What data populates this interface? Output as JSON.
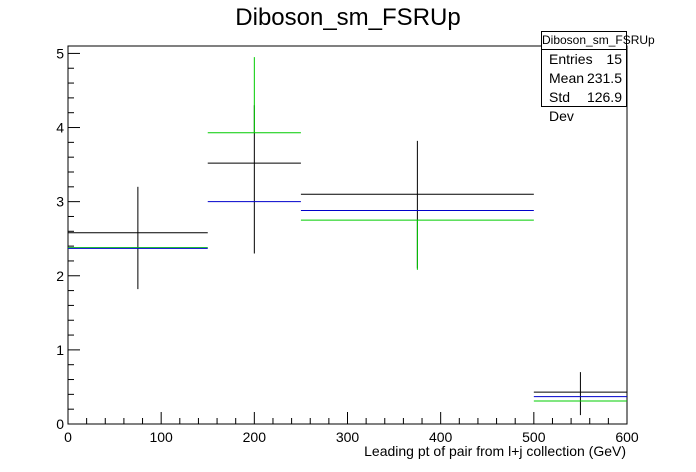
{
  "chart_data": {
    "type": "scatter",
    "title": "Diboson_sm_FSRUp",
    "xlabel": "Leading pt of pair from l+j collection (GeV)",
    "ylabel": "",
    "xlim": [
      0,
      600
    ],
    "ylim": [
      0,
      5.1
    ],
    "xticks": [
      0,
      100,
      200,
      300,
      400,
      500,
      600
    ],
    "yticks": [
      0,
      1,
      2,
      3,
      4,
      5
    ],
    "grid": false,
    "stats": {
      "name": "Diboson_sm_FSRUp",
      "entries_label": "Entries",
      "entries": "15",
      "mean_label": "Mean",
      "mean": "231.5",
      "stddev_label": "Std Dev",
      "stddev": "126.9"
    },
    "series": [
      {
        "color": "#000000",
        "bins": [
          {
            "xlo": 0,
            "xhi": 150,
            "x": 75,
            "y": 2.58,
            "ylo": 1.82,
            "yhi": 3.2
          },
          {
            "xlo": 150,
            "xhi": 250,
            "x": 200,
            "y": 3.52,
            "ylo": 2.3,
            "yhi": 4.3
          },
          {
            "xlo": 250,
            "xhi": 500,
            "x": 375,
            "y": 3.1,
            "ylo": 2.1,
            "yhi": 3.82
          },
          {
            "xlo": 500,
            "xhi": 600,
            "x": 550,
            "y": 0.43,
            "ylo": 0.12,
            "yhi": 0.7
          }
        ]
      },
      {
        "color": "#00cc00",
        "bins": [
          {
            "xlo": 0,
            "xhi": 150,
            "x": 75,
            "y": 2.38,
            "ylo": 2.38,
            "yhi": 2.38
          },
          {
            "xlo": 150,
            "xhi": 250,
            "x": 200,
            "y": 3.93,
            "ylo": 3.93,
            "yhi": 4.95
          },
          {
            "xlo": 250,
            "xhi": 500,
            "x": 375,
            "y": 2.75,
            "ylo": 2.08,
            "yhi": 2.75
          },
          {
            "xlo": 500,
            "xhi": 600,
            "x": 550,
            "y": 0.31,
            "ylo": 0.31,
            "yhi": 0.31
          }
        ]
      },
      {
        "color": "#0000cc",
        "bins": [
          {
            "xlo": 0,
            "xhi": 150,
            "x": 75,
            "y": 2.37,
            "ylo": 2.37,
            "yhi": 2.37
          },
          {
            "xlo": 150,
            "xhi": 250,
            "x": 200,
            "y": 3.0,
            "ylo": 3.0,
            "yhi": 3.0
          },
          {
            "xlo": 250,
            "xhi": 500,
            "x": 375,
            "y": 2.88,
            "ylo": 2.88,
            "yhi": 2.88
          },
          {
            "xlo": 500,
            "xhi": 600,
            "x": 550,
            "y": 0.37,
            "ylo": 0.37,
            "yhi": 0.37
          }
        ]
      }
    ]
  }
}
